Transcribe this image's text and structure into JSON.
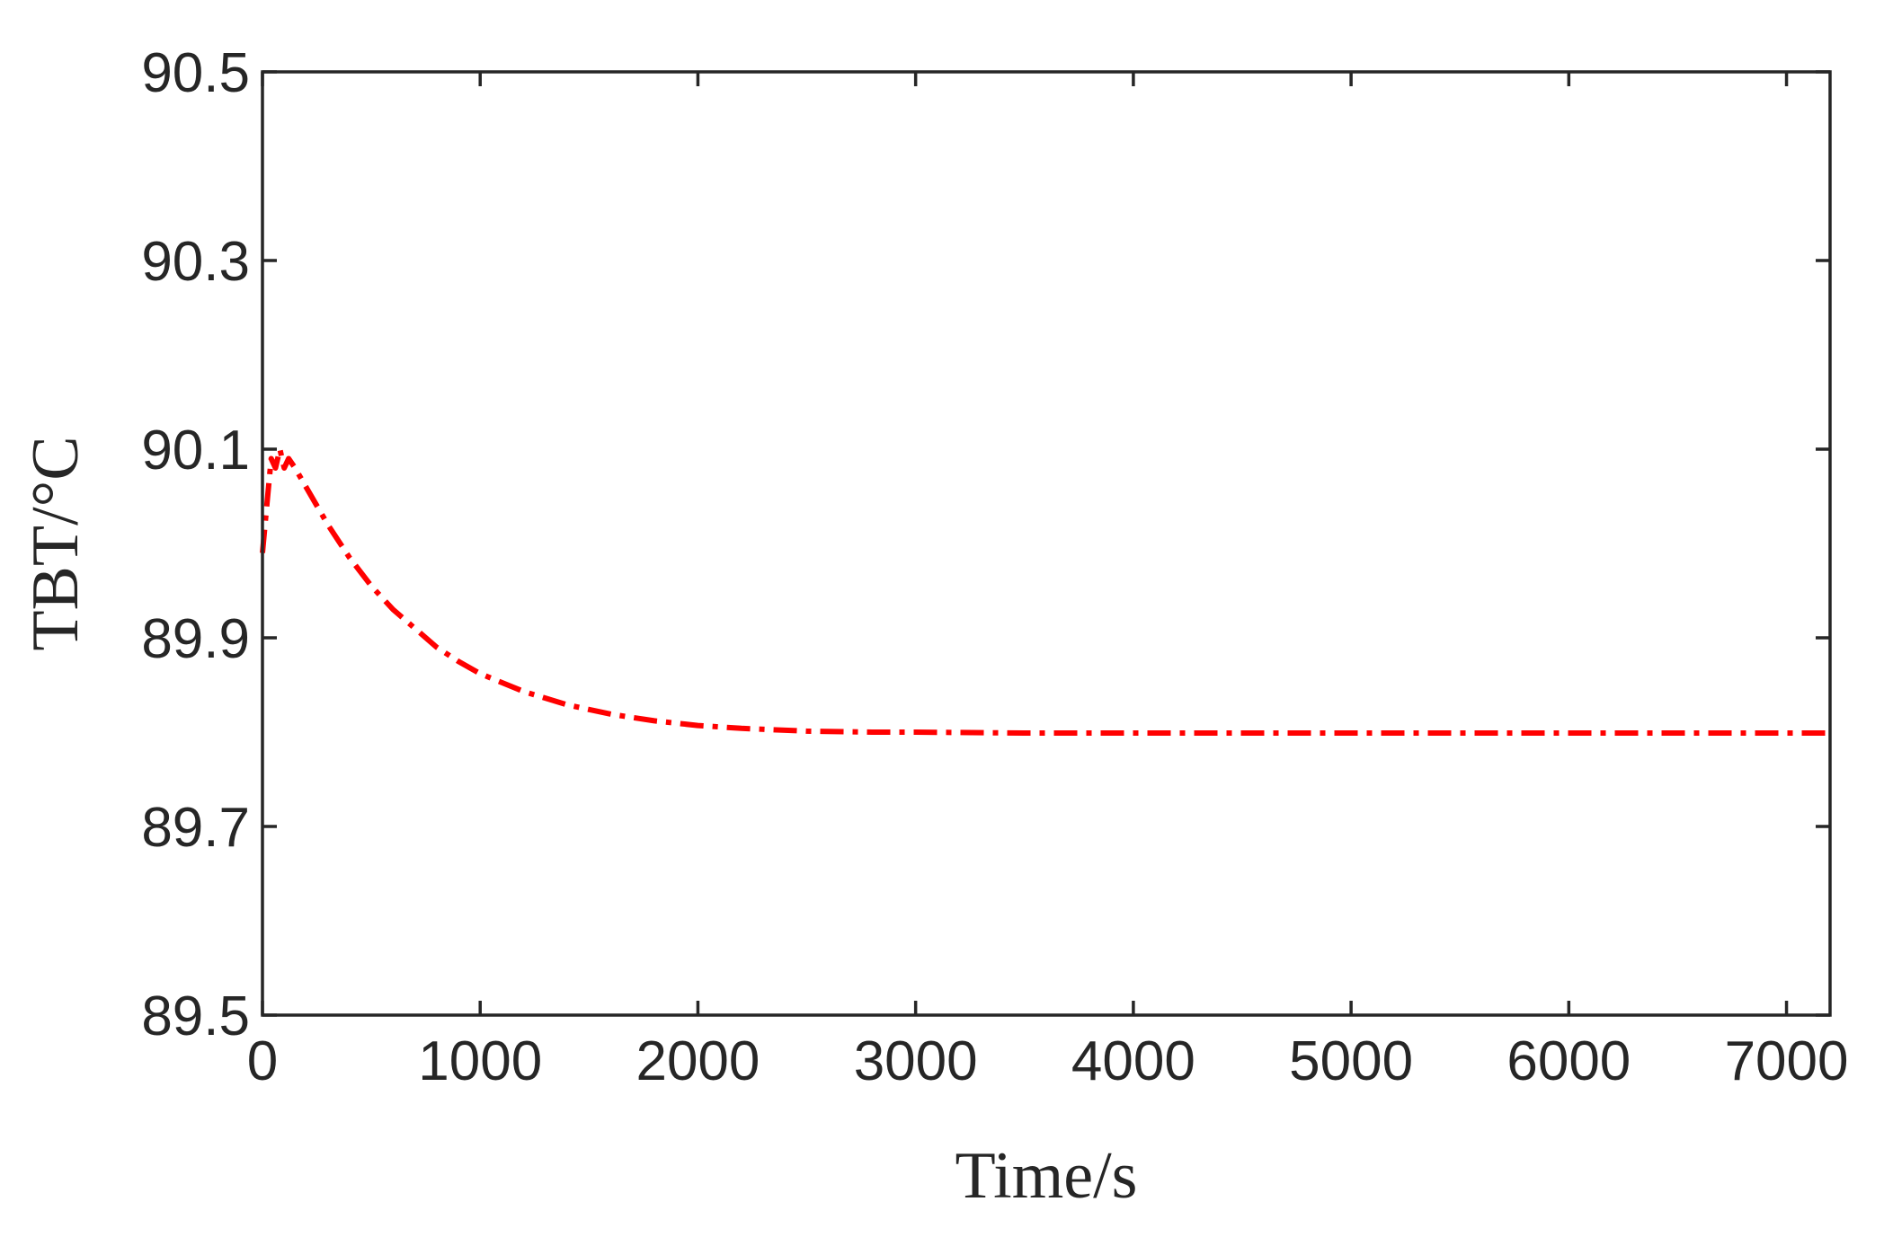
{
  "chart_data": {
    "type": "line",
    "title": "",
    "xlabel": "Time/s",
    "ylabel": "TBT/°C",
    "xlim": [
      0,
      7200
    ],
    "ylim": [
      89.5,
      90.5
    ],
    "xticks": [
      0,
      1000,
      2000,
      3000,
      4000,
      5000,
      6000,
      7000
    ],
    "xtick_labels": [
      "0",
      "1000",
      "2000",
      "3000",
      "4000",
      "5000",
      "6000",
      "7000"
    ],
    "yticks": [
      89.5,
      89.7,
      89.9,
      90.1,
      90.3,
      90.5
    ],
    "ytick_labels": [
      "89.5",
      "89.7",
      "89.9",
      "90.1",
      "90.3",
      "90.5"
    ],
    "grid": false,
    "legend": "none",
    "series": [
      {
        "color": "#ff0000",
        "line_style": "dash-dot",
        "x": [
          0,
          20,
          40,
          60,
          80,
          100,
          120,
          150,
          200,
          300,
          400,
          500,
          600,
          700,
          800,
          900,
          1000,
          1200,
          1400,
          1600,
          1800,
          2000,
          2200,
          2500,
          2800,
          3000,
          3500,
          4000,
          5000,
          6000,
          7200
        ],
        "y": [
          89.99,
          90.04,
          90.09,
          90.08,
          90.1,
          90.08,
          90.09,
          90.08,
          90.06,
          90.02,
          89.985,
          89.955,
          89.93,
          89.91,
          89.89,
          89.875,
          89.862,
          89.843,
          89.829,
          89.819,
          89.812,
          89.807,
          89.804,
          89.801,
          89.8,
          89.8,
          89.799,
          89.799,
          89.799,
          89.799,
          89.799
        ]
      }
    ]
  }
}
